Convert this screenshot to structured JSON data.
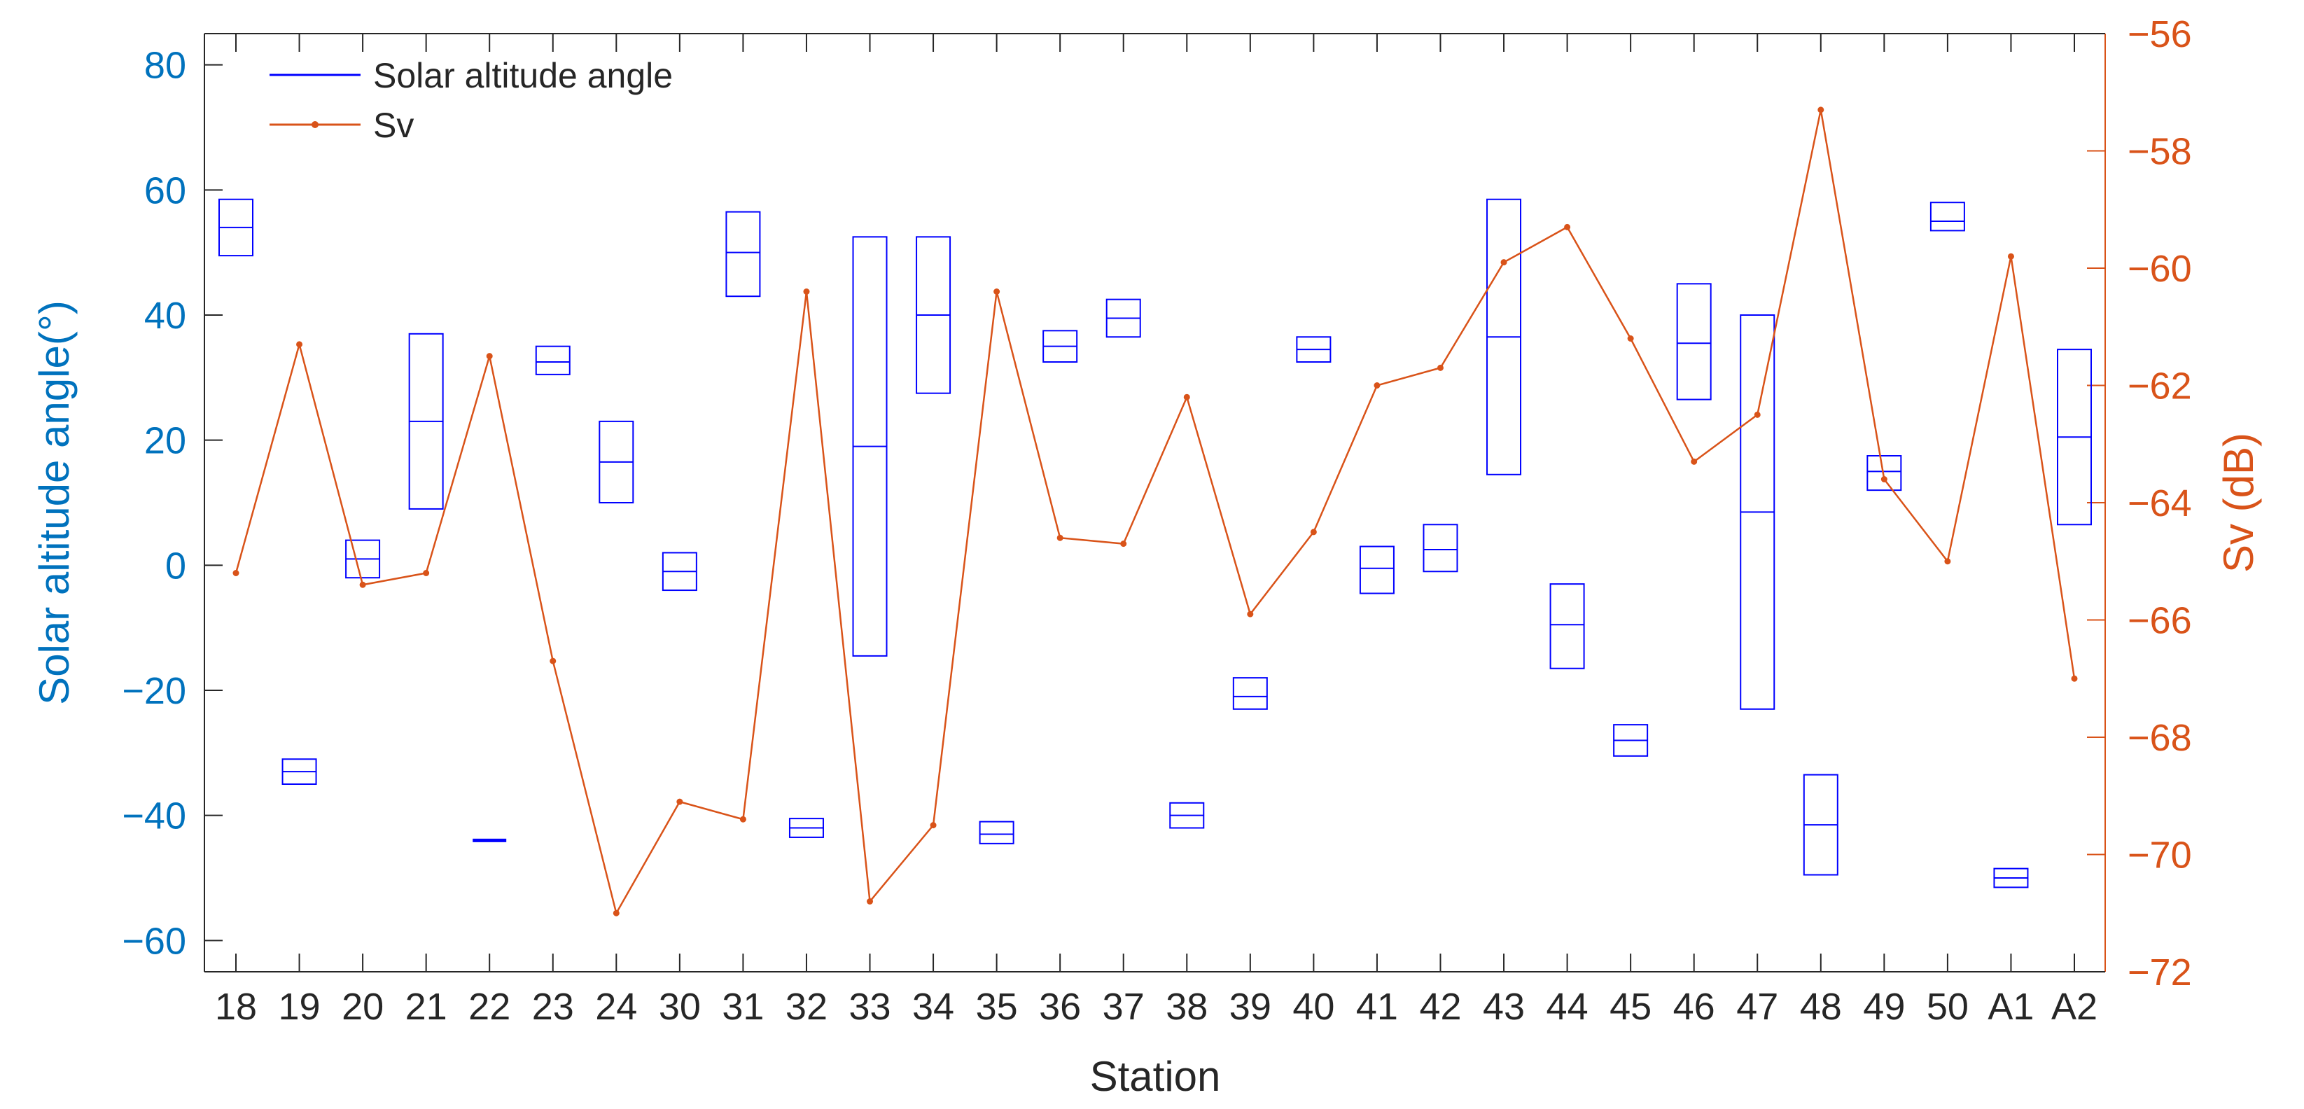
{
  "chart_data": {
    "type": "box",
    "xlabel": "Station",
    "ylabel_left": "Solar altitude angle(°)",
    "ylabel_right": "Sv (dB)",
    "ylim_left": [
      -65,
      85
    ],
    "ylim_right": [
      -72,
      -56
    ],
    "yticks_left": [
      80,
      60,
      40,
      20,
      0,
      -20,
      -40,
      -60
    ],
    "yticks_right": [
      -56,
      -58,
      -60,
      -62,
      -64,
      -66,
      -68,
      -70,
      -72
    ],
    "ytick_labels_left": [
      "80",
      "60",
      "40",
      "20",
      "0",
      "−20",
      "−40",
      "−60"
    ],
    "ytick_labels_right": [
      "−56",
      "−58",
      "−60",
      "−62",
      "−64",
      "−66",
      "−68",
      "−70",
      "−72"
    ],
    "categories": [
      "18",
      "19",
      "20",
      "21",
      "22",
      "23",
      "24",
      "30",
      "31",
      "32",
      "33",
      "34",
      "35",
      "36",
      "37",
      "38",
      "39",
      "40",
      "41",
      "42",
      "43",
      "44",
      "45",
      "46",
      "47",
      "48",
      "49",
      "50",
      "A1",
      "A2"
    ],
    "legend_position": "top-left",
    "colors": {
      "solar": "#0000FF",
      "sv": "#D95319",
      "left_axis": "#0072BD",
      "right_axis": "#D95319",
      "text": "#262626"
    },
    "series": [
      {
        "name": "Solar altitude angle",
        "axis": "left",
        "kind": "box",
        "boxes": [
          {
            "low": 49.5,
            "mid": 54.0,
            "high": 58.5
          },
          {
            "low": -35.0,
            "mid": -33.0,
            "high": -31.0
          },
          {
            "low": -2.0,
            "mid": 1.0,
            "high": 4.0
          },
          {
            "low": 9.0,
            "mid": 23.0,
            "high": 37.0
          },
          {
            "low": -44.0,
            "mid": -44.0,
            "high": -44.0
          },
          {
            "low": 30.5,
            "mid": 32.5,
            "high": 35.0
          },
          {
            "low": 10.0,
            "mid": 16.5,
            "high": 23.0
          },
          {
            "low": -4.0,
            "mid": -1.0,
            "high": 2.0
          },
          {
            "low": 43.0,
            "mid": 50.0,
            "high": 56.5
          },
          {
            "low": -43.5,
            "mid": -42.0,
            "high": -40.5
          },
          {
            "low": -14.5,
            "mid": 19.0,
            "high": 52.5
          },
          {
            "low": 27.5,
            "mid": 40.0,
            "high": 52.5
          },
          {
            "low": -44.5,
            "mid": -43.0,
            "high": -41.0
          },
          {
            "low": 32.5,
            "mid": 35.0,
            "high": 37.5
          },
          {
            "low": 36.5,
            "mid": 39.5,
            "high": 42.5
          },
          {
            "low": -42.0,
            "mid": -40.0,
            "high": -38.0
          },
          {
            "low": -23.0,
            "mid": -21.0,
            "high": -18.0
          },
          {
            "low": 32.5,
            "mid": 34.5,
            "high": 36.5
          },
          {
            "low": -4.5,
            "mid": -0.5,
            "high": 3.0
          },
          {
            "low": -1.0,
            "mid": 2.5,
            "high": 6.5
          },
          {
            "low": 14.5,
            "mid": 36.5,
            "high": 58.5
          },
          {
            "low": -16.5,
            "mid": -9.5,
            "high": -3.0
          },
          {
            "low": -30.5,
            "mid": -28.0,
            "high": -25.5
          },
          {
            "low": 26.5,
            "mid": 35.5,
            "high": 45.0
          },
          {
            "low": -23.0,
            "mid": 8.5,
            "high": 40.0
          },
          {
            "low": -49.5,
            "mid": -41.5,
            "high": -33.5
          },
          {
            "low": 12.0,
            "mid": 15.0,
            "high": 17.5
          },
          {
            "low": 53.5,
            "mid": 55.0,
            "high": 58.0
          },
          {
            "low": -51.5,
            "mid": -50.0,
            "high": -48.5
          },
          {
            "low": 6.5,
            "mid": 20.5,
            "high": 34.5
          }
        ]
      },
      {
        "name": "Sv",
        "axis": "right",
        "kind": "line",
        "values": [
          -65.2,
          -61.3,
          -65.4,
          -65.2,
          -61.5,
          -66.7,
          -71.0,
          -69.1,
          -69.4,
          -60.4,
          -70.8,
          -69.5,
          -60.4,
          -64.6,
          -64.7,
          -62.2,
          -65.9,
          -64.5,
          -62.0,
          -61.7,
          -59.9,
          -59.3,
          -61.2,
          -63.3,
          -62.5,
          -57.3,
          -63.6,
          -65.0,
          -59.8,
          -67.0
        ]
      }
    ]
  }
}
